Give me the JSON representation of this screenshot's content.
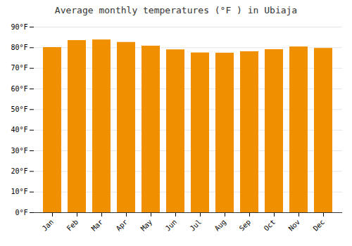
{
  "chart_data": {
    "type": "bar",
    "title": "Average monthly temperatures (°F ) in Ubiaja",
    "categories": [
      "Jan",
      "Feb",
      "Mar",
      "Apr",
      "May",
      "Jun",
      "Jul",
      "Aug",
      "Sep",
      "Oct",
      "Nov",
      "Dec"
    ],
    "values": [
      80.1,
      83.5,
      83.8,
      82.6,
      80.8,
      79.0,
      77.5,
      77.4,
      78.1,
      79.1,
      80.4,
      79.7
    ],
    "color": "#F09000",
    "ylim": [
      0,
      90
    ],
    "yticks": [
      {
        "value": 0,
        "label": "0°F"
      },
      {
        "value": 10,
        "label": "10°F"
      },
      {
        "value": 20,
        "label": "20°F"
      },
      {
        "value": 30,
        "label": "30°F"
      },
      {
        "value": 40,
        "label": "40°F"
      },
      {
        "value": 50,
        "label": "50°F"
      },
      {
        "value": 60,
        "label": "60°F"
      },
      {
        "value": 70,
        "label": "70°F"
      },
      {
        "value": 80,
        "label": "80°F"
      },
      {
        "value": 90,
        "label": "90°F"
      }
    ],
    "grid": true
  }
}
